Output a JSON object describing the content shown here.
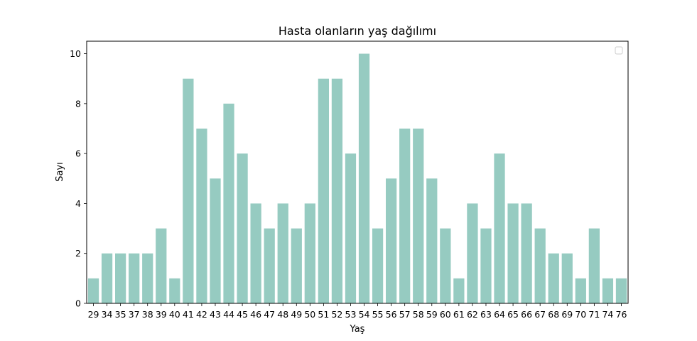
{
  "chart_data": {
    "type": "bar",
    "title": "Hasta olanların yaş dağılımı",
    "xlabel": "Yaş",
    "ylabel": "Sayı",
    "categories": [
      "29",
      "34",
      "35",
      "37",
      "38",
      "39",
      "40",
      "41",
      "42",
      "43",
      "44",
      "45",
      "46",
      "47",
      "48",
      "49",
      "50",
      "51",
      "52",
      "53",
      "54",
      "55",
      "56",
      "57",
      "58",
      "59",
      "60",
      "61",
      "62",
      "63",
      "64",
      "65",
      "66",
      "67",
      "68",
      "69",
      "70",
      "71",
      "74",
      "76"
    ],
    "values": [
      1,
      2,
      2,
      2,
      2,
      3,
      1,
      9,
      7,
      5,
      8,
      6,
      4,
      3,
      4,
      3,
      4,
      9,
      9,
      6,
      10,
      3,
      5,
      7,
      7,
      5,
      3,
      1,
      4,
      3,
      6,
      4,
      4,
      3,
      2,
      2,
      1,
      3,
      1,
      1
    ],
    "ylim": [
      0,
      10.5
    ],
    "yticks": [
      0,
      2,
      4,
      6,
      8,
      10
    ],
    "bar_color": "#96cbc1",
    "legend": "top-right, empty",
    "grid": false
  }
}
